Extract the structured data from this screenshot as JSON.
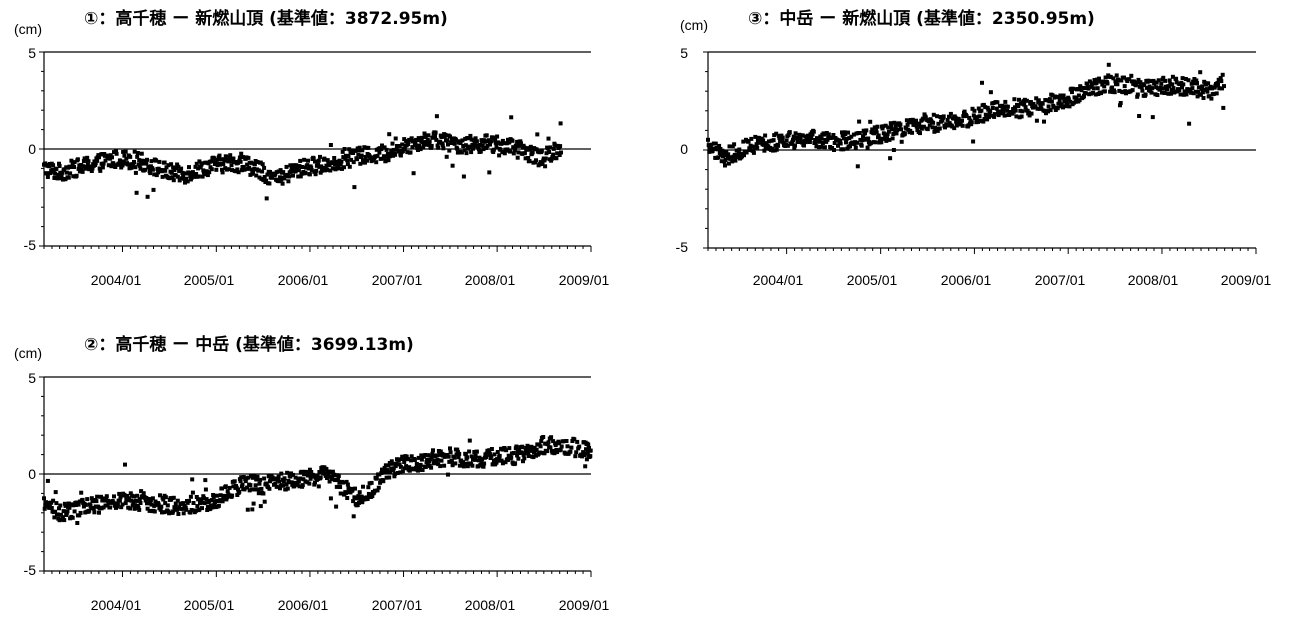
{
  "charts": [
    {
      "title": "①：高千穂 ー 新燃山頂 (基準値：3872.95m)",
      "unit": "(cm)",
      "y_ticks": [
        "5",
        "0",
        "-5"
      ],
      "x_ticks": [
        "2004/01",
        "2005/01",
        "2006/01",
        "2007/01",
        "2008/01",
        "2009/01"
      ]
    },
    {
      "title": "③：中岳 ー 新燃山頂 (基準値：2350.95m)",
      "unit": "(cm)",
      "y_ticks": [
        "5",
        "0",
        "-5"
      ],
      "x_ticks": [
        "2004/01",
        "2005/01",
        "2006/01",
        "2007/01",
        "2008/01",
        "2009/01"
      ]
    },
    {
      "title": "②：高千穂 ー 中岳 (基準値：3699.13m)",
      "unit": "(cm)",
      "y_ticks": [
        "5",
        "0",
        "-5"
      ],
      "x_ticks": [
        "2004/01",
        "2005/01",
        "2006/01",
        "2007/01",
        "2008/01",
        "2009/01"
      ]
    }
  ],
  "chart_data": [
    {
      "type": "scatter",
      "title": "①：高千穂 ー 新燃山頂 (基準値：3872.95m)",
      "ylabel": "(cm)",
      "xlim": [
        "2003-03-01",
        "2009-01-01"
      ],
      "ylim": [
        -5,
        5
      ],
      "baseline": 0,
      "grid": false,
      "series": [
        {
          "x": [
            "2003-03",
            "2003-05",
            "2003-07",
            "2003-09",
            "2003-11",
            "2004-01",
            "2004-03",
            "2004-05",
            "2004-07",
            "2004-09",
            "2004-11",
            "2005-01",
            "2005-03",
            "2005-05",
            "2005-07",
            "2005-09",
            "2005-11",
            "2006-01",
            "2006-03",
            "2006-05",
            "2006-07",
            "2006-09",
            "2006-11",
            "2007-01",
            "2007-03",
            "2007-05",
            "2007-07",
            "2007-09",
            "2007-11",
            "2008-01",
            "2008-03",
            "2008-05",
            "2008-07",
            "2008-09"
          ],
          "y": [
            -1.0,
            -1.2,
            -1.0,
            -0.8,
            -0.6,
            -0.5,
            -0.6,
            -0.9,
            -1.2,
            -1.3,
            -1.0,
            -0.8,
            -0.7,
            -0.8,
            -1.2,
            -1.6,
            -1.1,
            -0.9,
            -0.8,
            -0.6,
            -0.4,
            -0.3,
            -0.2,
            0.1,
            0.4,
            0.5,
            0.3,
            0.2,
            0.3,
            0.2,
            0.1,
            -0.2,
            -0.5,
            0.1
          ]
        }
      ]
    },
    {
      "type": "scatter",
      "title": "③：中岳 ー 新燃山頂 (基準値：2350.95m)",
      "ylabel": "(cm)",
      "xlim": [
        "2003-03-01",
        "2009-01-01"
      ],
      "ylim": [
        -5,
        5
      ],
      "baseline": 0,
      "grid": false,
      "series": [
        {
          "x": [
            "2003-03",
            "2003-05",
            "2003-07",
            "2003-09",
            "2003-11",
            "2004-01",
            "2004-03",
            "2004-05",
            "2004-07",
            "2004-09",
            "2004-11",
            "2005-01",
            "2005-03",
            "2005-05",
            "2005-07",
            "2005-09",
            "2005-11",
            "2006-01",
            "2006-03",
            "2006-05",
            "2006-07",
            "2006-09",
            "2006-11",
            "2007-01",
            "2007-03",
            "2007-05",
            "2007-07",
            "2007-09",
            "2007-11",
            "2008-01",
            "2008-03",
            "2008-05",
            "2008-07",
            "2008-09"
          ],
          "y": [
            0.3,
            -0.4,
            0.0,
            0.3,
            0.4,
            0.5,
            0.6,
            0.5,
            0.4,
            0.5,
            0.6,
            0.8,
            1.0,
            1.2,
            1.4,
            1.3,
            1.5,
            1.7,
            2.0,
            2.2,
            2.1,
            2.2,
            2.4,
            2.6,
            3.0,
            3.3,
            3.4,
            3.2,
            3.1,
            3.3,
            3.3,
            3.2,
            3.0,
            3.6
          ]
        }
      ]
    },
    {
      "type": "scatter",
      "title": "②：高千穂 ー 中岳 (基準値：3699.13m)",
      "ylabel": "(cm)",
      "xlim": [
        "2003-03-01",
        "2009-01-01"
      ],
      "ylim": [
        -5,
        5
      ],
      "baseline": 0,
      "grid": false,
      "series": [
        {
          "x": [
            "2003-03",
            "2003-05",
            "2003-07",
            "2003-09",
            "2003-11",
            "2004-01",
            "2004-03",
            "2004-05",
            "2004-07",
            "2004-09",
            "2004-11",
            "2005-01",
            "2005-03",
            "2005-05",
            "2005-07",
            "2005-09",
            "2005-11",
            "2006-01",
            "2006-03",
            "2006-05",
            "2006-07",
            "2006-09",
            "2006-11",
            "2007-01",
            "2007-03",
            "2007-05",
            "2007-07",
            "2007-09",
            "2007-11",
            "2008-01",
            "2008-03",
            "2008-05",
            "2008-07",
            "2008-09",
            "2008-12"
          ],
          "y": [
            -1.5,
            -2.0,
            -1.8,
            -1.6,
            -1.5,
            -1.3,
            -1.4,
            -1.5,
            -1.6,
            -1.7,
            -1.5,
            -1.3,
            -0.8,
            -0.5,
            -0.6,
            -0.4,
            -0.3,
            -0.2,
            0.0,
            -0.6,
            -1.2,
            -0.8,
            0.2,
            0.5,
            0.6,
            0.8,
            0.9,
            0.8,
            0.8,
            0.9,
            0.9,
            1.2,
            1.5,
            1.4,
            1.2
          ]
        }
      ]
    }
  ]
}
